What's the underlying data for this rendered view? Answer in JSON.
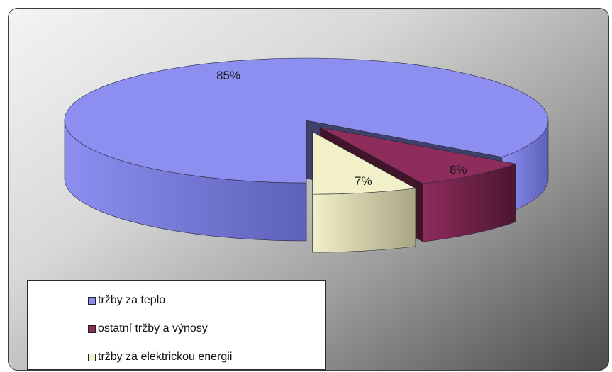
{
  "chart_data": {
    "type": "pie",
    "variant": "3d-exploded",
    "title": "",
    "slices": [
      {
        "label": "tržby za teplo",
        "value": 85,
        "display": "85%",
        "color": "#8c8ff0",
        "side_color": "#5d61b8"
      },
      {
        "label": "ostatní tržby a výnosy",
        "value": 8,
        "display": "8%",
        "color": "#8e2c5c",
        "side_color": "#4a1630"
      },
      {
        "label": "tržby za elektrickou energii",
        "value": 7,
        "display": "7%",
        "color": "#f2f0c8",
        "side_color": "#a8a684"
      }
    ],
    "legend_position": "bottom-left"
  },
  "legend": {
    "items": [
      {
        "label": "tržby za teplo",
        "color": "#8c8ff0"
      },
      {
        "label": "ostatní tržby a výnosy",
        "color": "#8e2c5c"
      },
      {
        "label": "tržby za elektrickou energii",
        "color": "#f2f0c8"
      }
    ]
  }
}
